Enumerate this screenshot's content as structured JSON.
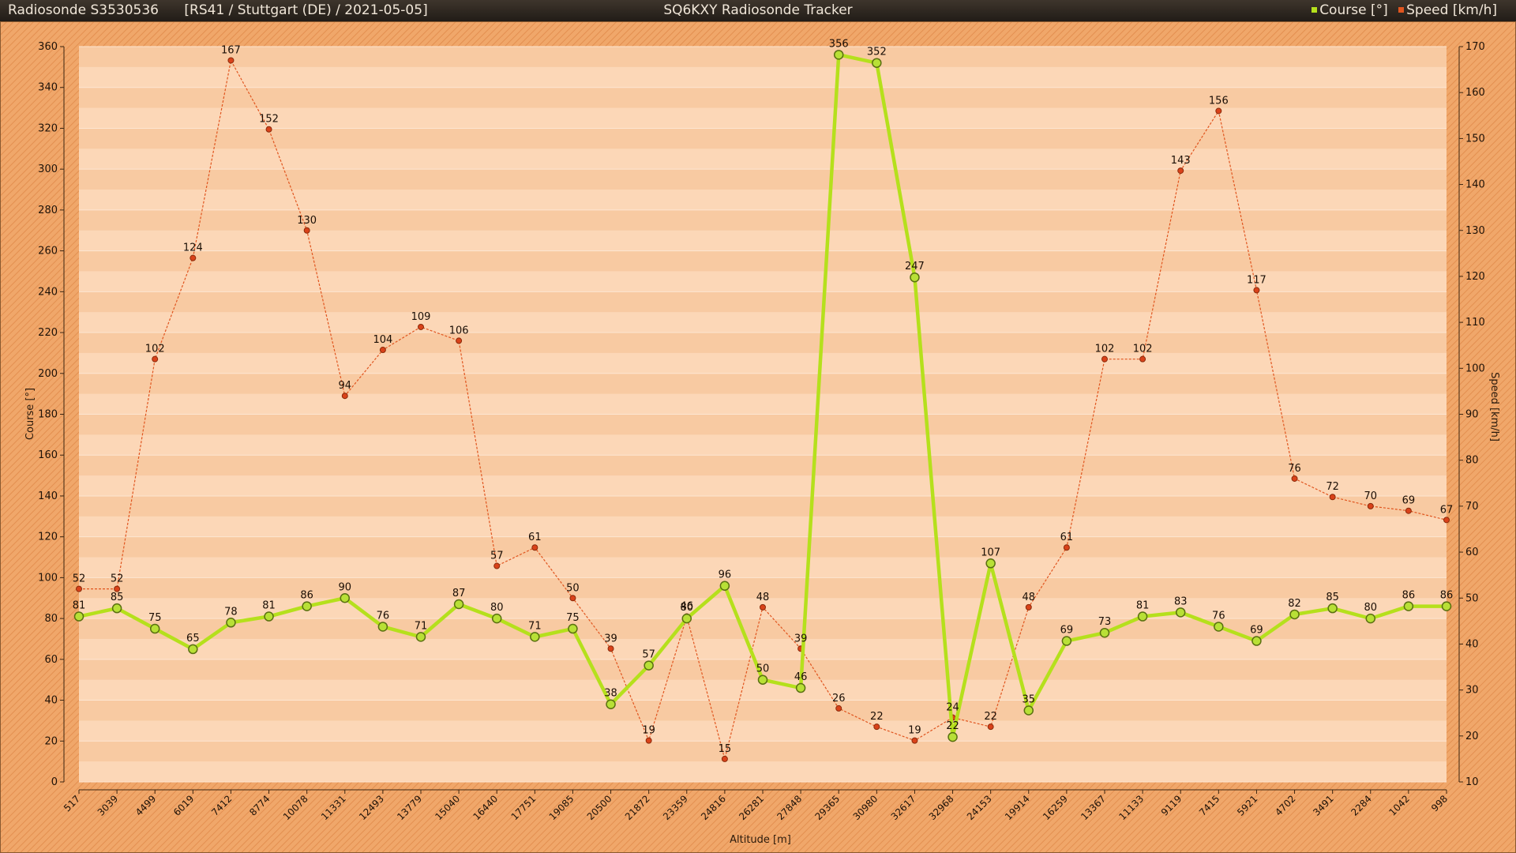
{
  "header": {
    "left_title": "Radiosonde S3530536",
    "left_info": "[RS41 / Stuttgart (DE) / 2021-05-05]",
    "center_title": "SQ6KXY Radiosonde Tracker",
    "legend": [
      {
        "name": "Course [°]",
        "color": "#b5e01c"
      },
      {
        "name": "Speed [km/h]",
        "color": "#e0551f"
      }
    ]
  },
  "chart_data": {
    "type": "line",
    "title": "SQ6KXY Radiosonde Tracker",
    "xlabel": "Altitude [m]",
    "ylabel_left": "Course [°]",
    "ylabel_right": "Speed [km/h]",
    "ylim_left": [
      0,
      360
    ],
    "ylim_right": [
      10,
      170
    ],
    "yticks_left": [
      0,
      20,
      40,
      60,
      80,
      100,
      120,
      140,
      160,
      180,
      200,
      220,
      240,
      260,
      280,
      300,
      320,
      340,
      360
    ],
    "yticks_right": [
      10,
      20,
      30,
      40,
      50,
      60,
      70,
      80,
      90,
      100,
      110,
      120,
      130,
      140,
      150,
      160,
      170
    ],
    "categories": [
      "517",
      "3039",
      "4499",
      "6019",
      "7412",
      "8774",
      "10078",
      "11331",
      "12493",
      "13779",
      "15040",
      "16440",
      "17751",
      "19085",
      "20500",
      "21872",
      "23359",
      "24816",
      "26281",
      "27848",
      "29365",
      "30980",
      "32617",
      "32968",
      "24153",
      "19914",
      "16259",
      "13367",
      "11133",
      "9119",
      "7415",
      "5921",
      "4702",
      "3491",
      "2284",
      "1042",
      "998"
    ],
    "series": [
      {
        "name": "Course [°]",
        "axis": "left",
        "color": "#b5e01c",
        "values": [
          81,
          85,
          75,
          65,
          78,
          81,
          86,
          90,
          76,
          71,
          87,
          80,
          71,
          75,
          38,
          57,
          80,
          96,
          50,
          46,
          356,
          352,
          247,
          22,
          107,
          35,
          69,
          73,
          81,
          83,
          76,
          69,
          82,
          85,
          80,
          86,
          86
        ]
      },
      {
        "name": "Speed [km/h]",
        "axis": "right",
        "color": "#e0551f",
        "values": [
          52,
          52,
          102,
          124,
          167,
          152,
          130,
          94,
          104,
          109,
          106,
          57,
          61,
          50,
          39,
          19,
          46,
          15,
          48,
          39,
          26,
          22,
          19,
          24,
          22,
          48,
          61,
          102,
          102,
          143,
          156,
          117,
          76,
          72,
          70,
          69,
          67
        ]
      }
    ],
    "grid": true,
    "legend_position": "top-right"
  }
}
